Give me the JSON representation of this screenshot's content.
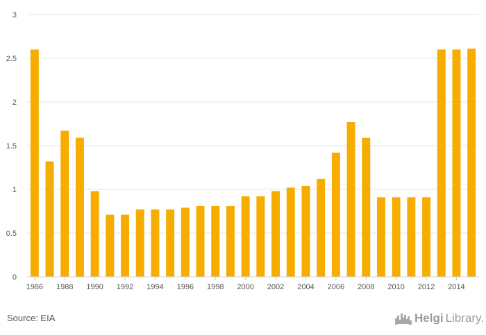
{
  "chart_data": {
    "type": "bar",
    "categories": [
      "1986",
      "1987",
      "1988",
      "1989",
      "1990",
      "1991",
      "1992",
      "1993",
      "1994",
      "1995",
      "1996",
      "1997",
      "1998",
      "1999",
      "2000",
      "2001",
      "2002",
      "2003",
      "2004",
      "2005",
      "2006",
      "2007",
      "2008",
      "2009",
      "2010",
      "2011",
      "2012",
      "2013",
      "2014",
      "2015"
    ],
    "x_tick_labels": [
      "1986",
      "1988",
      "1990",
      "1992",
      "1994",
      "1996",
      "1998",
      "2000",
      "2002",
      "2004",
      "2006",
      "2008",
      "2010",
      "2012",
      "2014"
    ],
    "values": [
      2.6,
      1.32,
      1.67,
      1.59,
      0.98,
      0.71,
      0.71,
      0.77,
      0.77,
      0.77,
      0.79,
      0.81,
      0.81,
      0.81,
      0.92,
      0.92,
      0.98,
      1.02,
      1.04,
      1.12,
      1.42,
      1.77,
      1.59,
      0.91,
      0.91,
      0.91,
      0.91,
      2.6,
      2.6,
      2.61
    ],
    "y_ticks": [
      "0",
      "0.5",
      "1",
      "1.5",
      "2",
      "2.5",
      "3"
    ],
    "ylim": [
      0,
      3
    ],
    "grid": true,
    "bar_color": "#f6ad00",
    "grid_color": "#e6e6e6",
    "title": "",
    "xlabel": "",
    "ylabel": ""
  },
  "footer": {
    "source": "Source: EIA",
    "brand_name": "Helgi",
    "brand_suffix": "Library."
  }
}
